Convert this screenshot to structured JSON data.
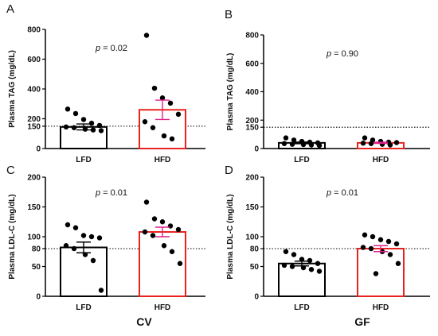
{
  "colors": {
    "lfd": "#000000",
    "hfd": "#e8231f",
    "hfd_error": "#e0218a",
    "dots": "#000000"
  },
  "bottom_labels": {
    "left": "CV",
    "right": "GF"
  },
  "chart_data": [
    {
      "type": "bar",
      "panel": "A",
      "ylabel": "Plasma TAG (mg/dL)",
      "pvalue": "0.02",
      "ylim": [
        0,
        800
      ],
      "yticks": [
        0,
        150,
        200,
        400,
        600,
        800
      ],
      "reference_line": 150,
      "categories": [
        "LFD",
        "HFD"
      ],
      "values": [
        145,
        260
      ],
      "sem": [
        20,
        65
      ],
      "points": [
        [
          265,
          235,
          195,
          170,
          155,
          145,
          140,
          130,
          125,
          120
        ],
        [
          760,
          405,
          340,
          305,
          230,
          180,
          140,
          85,
          65
        ]
      ]
    },
    {
      "type": "bar",
      "panel": "B",
      "ylabel": "Plasma TAG (mg/dL)",
      "pvalue": "0.90",
      "ylim": [
        0,
        800
      ],
      "yticks": [
        0,
        150,
        200,
        400,
        600,
        800
      ],
      "reference_line": 150,
      "categories": [
        "LFD",
        "HFD"
      ],
      "values": [
        40,
        40
      ],
      "sem": [
        6,
        4
      ],
      "points": [
        [
          75,
          60,
          50,
          45,
          40,
          35,
          30,
          28,
          25,
          22
        ],
        [
          75,
          60,
          50,
          45,
          42,
          38,
          35,
          30,
          25
        ]
      ]
    },
    {
      "type": "bar",
      "panel": "C",
      "ylabel": "Plasma LDL-C (mg/dL)",
      "pvalue": "0.01",
      "ylim": [
        0,
        200
      ],
      "yticks": [
        0,
        50,
        80,
        100,
        150,
        200
      ],
      "reference_line": 80,
      "categories": [
        "LFD",
        "HFD"
      ],
      "values": [
        82,
        108
      ],
      "sem": [
        9,
        8
      ],
      "points": [
        [
          120,
          115,
          102,
          100,
          98,
          85,
          80,
          70,
          60,
          10
        ],
        [
          158,
          130,
          125,
          118,
          112,
          108,
          102,
          85,
          75,
          55
        ]
      ]
    },
    {
      "type": "bar",
      "panel": "D",
      "ylabel": "Plasma LDL-C (mg/dL)",
      "pvalue": "0.01",
      "ylim": [
        0,
        200
      ],
      "yticks": [
        0,
        50,
        80,
        100,
        150,
        200
      ],
      "reference_line": 80,
      "categories": [
        "LFD",
        "HFD"
      ],
      "values": [
        55,
        80
      ],
      "sem": [
        4,
        5
      ],
      "points": [
        [
          75,
          70,
          62,
          60,
          55,
          52,
          50,
          48,
          45,
          42
        ],
        [
          103,
          100,
          95,
          92,
          88,
          82,
          80,
          75,
          70,
          55,
          38
        ]
      ]
    }
  ]
}
